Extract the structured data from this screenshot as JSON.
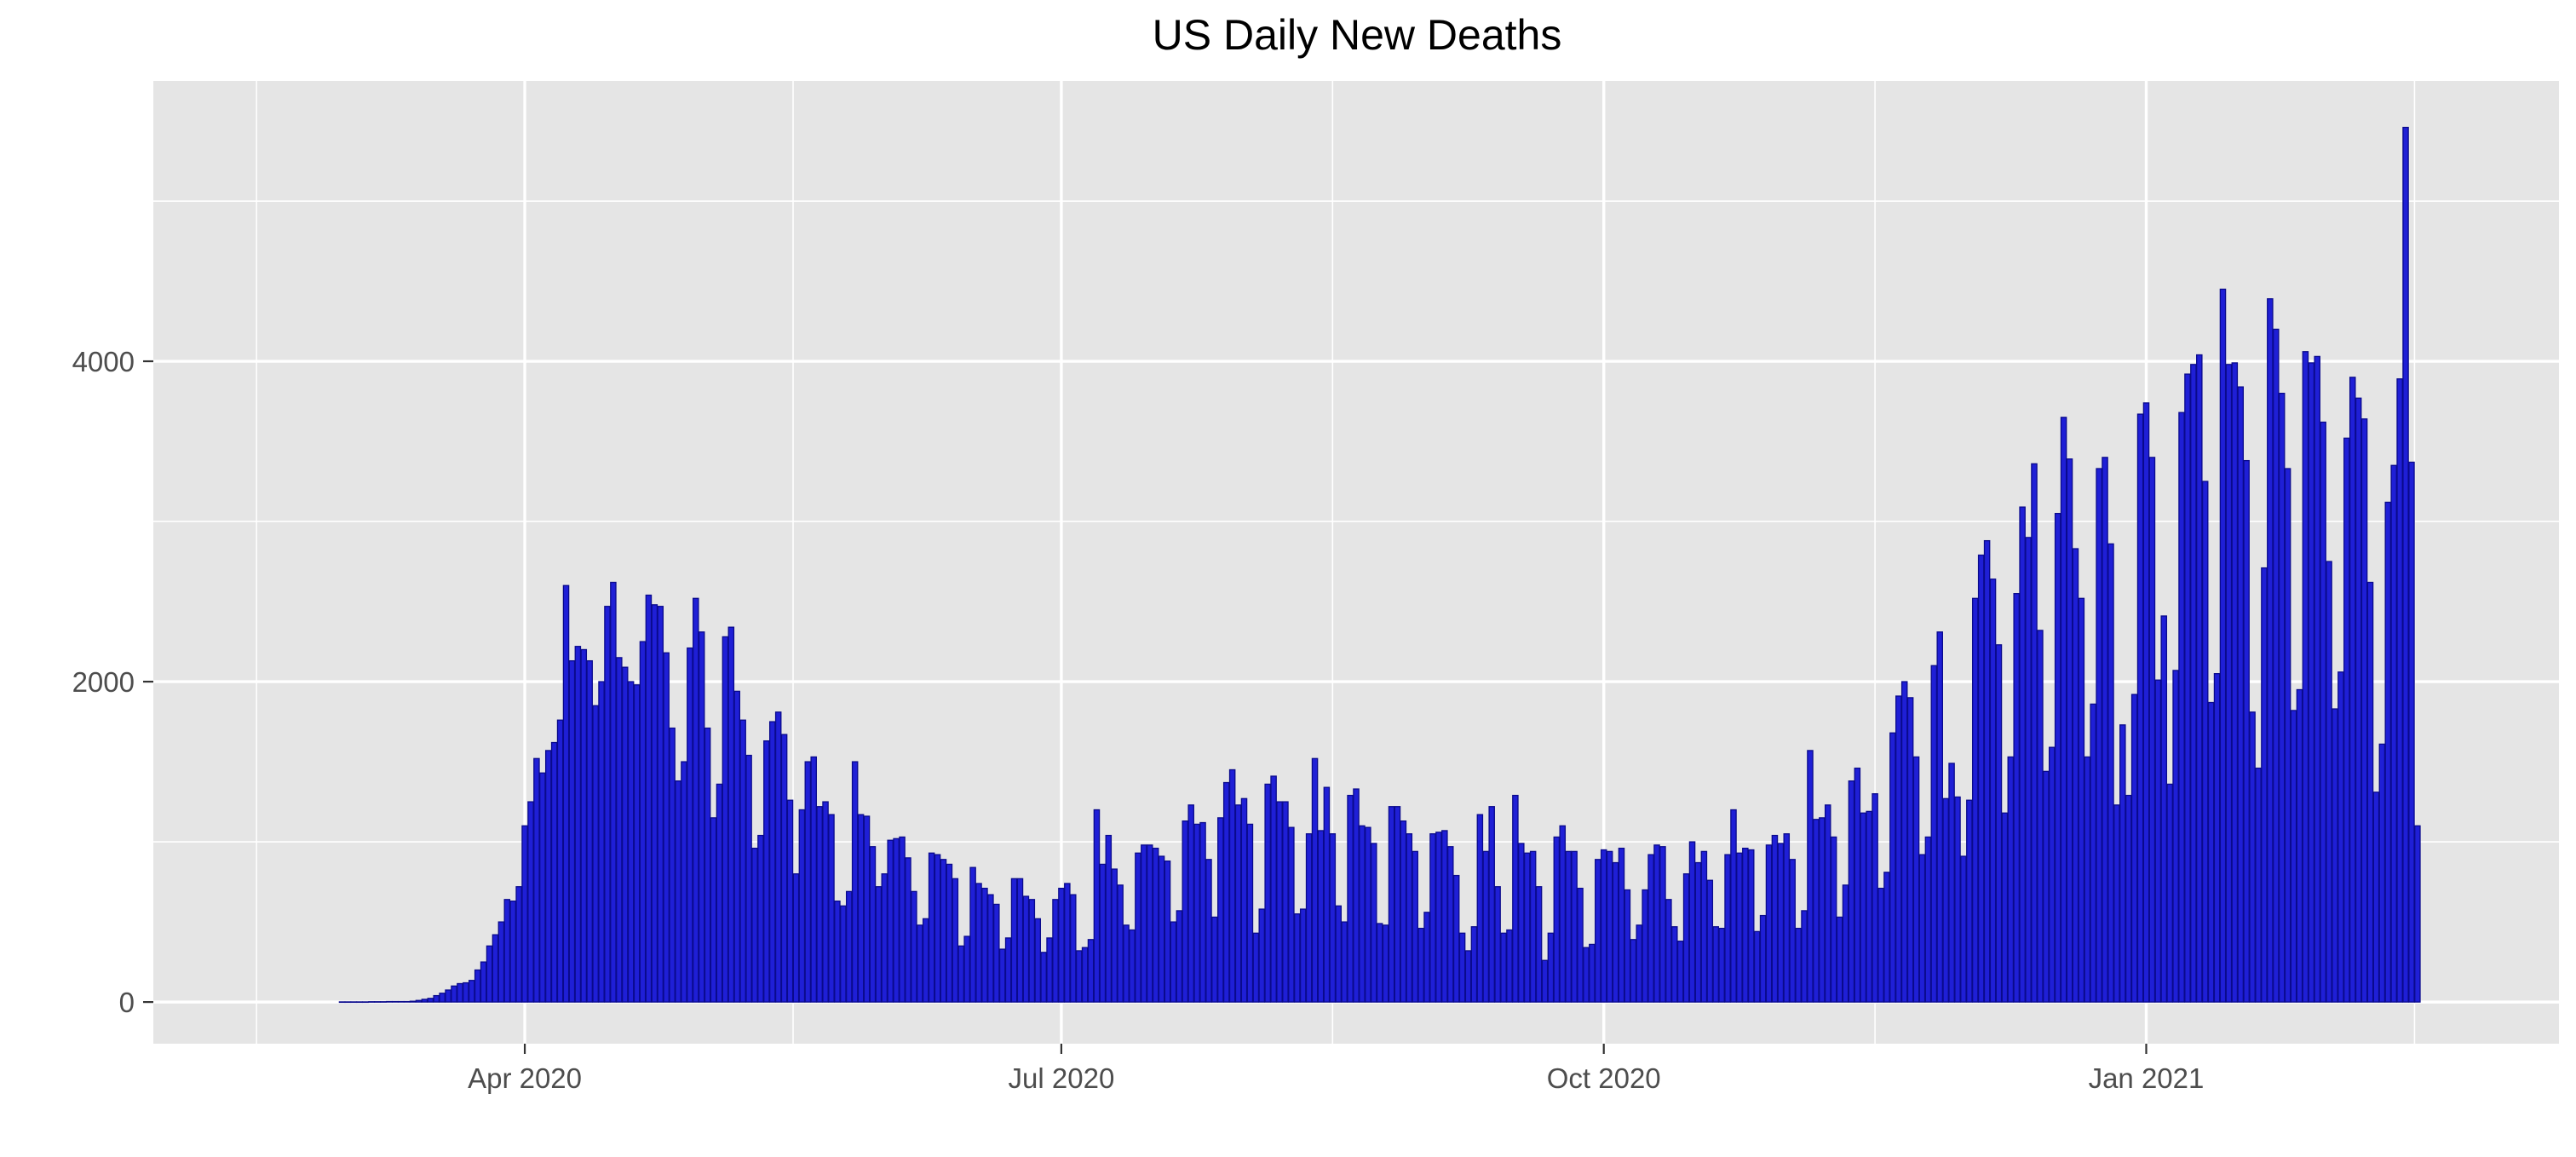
{
  "chart_data": {
    "type": "bar",
    "title": "US Daily New Deaths",
    "xlabel": "",
    "ylabel": "",
    "x_start": "2020-03-01",
    "x_end": "2021-03-07",
    "xlim": [
      "2020-01-29",
      "2021-03-12"
    ],
    "ylim": [
      -260,
      5750
    ],
    "x_ticks": [
      {
        "date": "2020-04-01",
        "label": "Apr 2020"
      },
      {
        "date": "2020-07-01",
        "label": "Jul 2020"
      },
      {
        "date": "2020-10-01",
        "label": "Oct 2020"
      },
      {
        "date": "2021-01-01",
        "label": "Jan 2021"
      }
    ],
    "y_ticks": [
      {
        "value": 0,
        "label": "0"
      },
      {
        "value": 2000,
        "label": "2000"
      },
      {
        "value": 4000,
        "label": "4000"
      }
    ],
    "grid": true,
    "legend": "none",
    "colors": {
      "panel": "#e5e5e5",
      "grid": "#ffffff",
      "bar_fill": "#1f1fd6",
      "bar_outline": "#0a0a8c",
      "title": "#000000",
      "tick_label": "#4d4d4d"
    },
    "values": [
      1,
      1,
      1,
      1,
      1,
      2,
      2,
      2,
      3,
      3,
      3,
      3,
      5,
      10,
      17,
      23,
      40,
      55,
      75,
      100,
      115,
      120,
      135,
      200,
      250,
      350,
      420,
      500,
      640,
      630,
      720,
      1100,
      1250,
      1520,
      1430,
      1570,
      1620,
      1760,
      2600,
      2130,
      2220,
      2200,
      2130,
      1850,
      2000,
      2470,
      2620,
      2150,
      2090,
      2000,
      1980,
      2250,
      2540,
      2480,
      2470,
      2180,
      1710,
      1380,
      1500,
      2210,
      2520,
      2310,
      1710,
      1150,
      1360,
      2280,
      2340,
      1940,
      1760,
      1540,
      960,
      1040,
      1630,
      1750,
      1810,
      1670,
      1260,
      800,
      1200,
      1500,
      1530,
      1220,
      1250,
      1170,
      630,
      600,
      690,
      1500,
      1170,
      1160,
      970,
      720,
      800,
      1010,
      1020,
      1030,
      900,
      690,
      480,
      520,
      930,
      920,
      890,
      860,
      770,
      350,
      410,
      840,
      740,
      710,
      670,
      610,
      330,
      400,
      770,
      770,
      660,
      640,
      520,
      310,
      400,
      640,
      710,
      740,
      670,
      320,
      340,
      390,
      1200,
      860,
      1040,
      830,
      730,
      480,
      450,
      930,
      980,
      980,
      960,
      910,
      880,
      500,
      570,
      1130,
      1230,
      1110,
      1120,
      890,
      530,
      1150,
      1370,
      1450,
      1230,
      1270,
      1110,
      430,
      580,
      1360,
      1410,
      1250,
      1250,
      1090,
      550,
      580,
      1050,
      1520,
      1070,
      1340,
      1050,
      600,
      500,
      1290,
      1330,
      1100,
      1090,
      990,
      490,
      480,
      1220,
      1220,
      1130,
      1050,
      940,
      460,
      560,
      1050,
      1060,
      1070,
      970,
      790,
      430,
      320,
      470,
      1170,
      940,
      1220,
      720,
      430,
      450,
      1290,
      990,
      930,
      940,
      720,
      260,
      430,
      1030,
      1100,
      940,
      940,
      710,
      340,
      360,
      890,
      950,
      940,
      870,
      960,
      700,
      390,
      480,
      700,
      920,
      980,
      970,
      640,
      470,
      380,
      800,
      1000,
      870,
      940,
      760,
      470,
      460,
      920,
      1200,
      930,
      960,
      950,
      440,
      540,
      980,
      1040,
      990,
      1050,
      890,
      460,
      570,
      1570,
      1140,
      1150,
      1230,
      1030,
      530,
      730,
      1380,
      1460,
      1180,
      1190,
      1300,
      710,
      810,
      1680,
      1910,
      2000,
      1900,
      1530,
      920,
      1030,
      2100,
      2310,
      1270,
      1490,
      1280,
      910,
      1260,
      2520,
      2790,
      2880,
      2640,
      2230,
      1180,
      1530,
      2550,
      3090,
      2900,
      3360,
      2320,
      1440,
      1590,
      3050,
      3650,
      3390,
      2830,
      2520,
      1530,
      1860,
      3330,
      3400,
      2860,
      1230,
      1730,
      1290,
      1920,
      3670,
      3740,
      3400,
      2010,
      2410,
      1360,
      2070,
      3680,
      3920,
      3980,
      4040,
      3250,
      1870,
      2050,
      4450,
      3980,
      3990,
      3840,
      3380,
      1810,
      1460,
      2710,
      4390,
      4200,
      3800,
      3330,
      1820,
      1950,
      4060,
      3990,
      4030,
      3620,
      2750,
      1830,
      2060,
      3520,
      3900,
      3770,
      3640,
      2620,
      1310,
      1610,
      3120,
      3350,
      3890,
      5460,
      3370,
      1100
    ]
  }
}
